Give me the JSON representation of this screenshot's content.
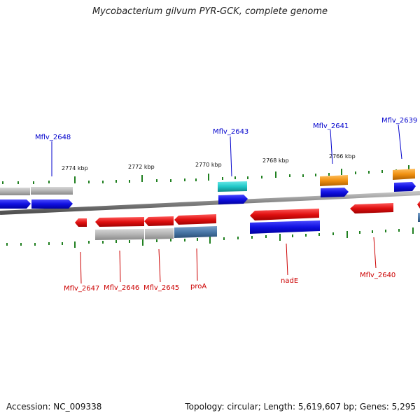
{
  "title": "Mycobacterium gilvum PYR-GCK, complete genome",
  "footer": {
    "accession": "Accession: NC_009338",
    "summary": "Topology: circular; Length: 5,619,607 bp; Genes: 5,295"
  },
  "colors": {
    "plus_strand_cds": "#1010e0",
    "minus_strand_cds": "#e01010",
    "gene_gray": "#b4b4b4",
    "trna_cyan": "#20c8c8",
    "orange": "#f09010",
    "steelblue": "#4a78a8",
    "tick_green": "#208020",
    "backbone": "#808080"
  },
  "kbp_ticks": [
    "2774 kbp",
    "2772 kbp",
    "2770 kbp",
    "2768 kbp",
    "2766 kbp"
  ],
  "labels_top": [
    "Mflv_2648",
    "Mflv_2643",
    "Mflv_2641",
    "Mflv_2639"
  ],
  "labels_bottom": [
    "Mflv_2647",
    "Mflv_2646",
    "Mflv_2645",
    "proA",
    "nadE",
    "Mflv_2640"
  ]
}
